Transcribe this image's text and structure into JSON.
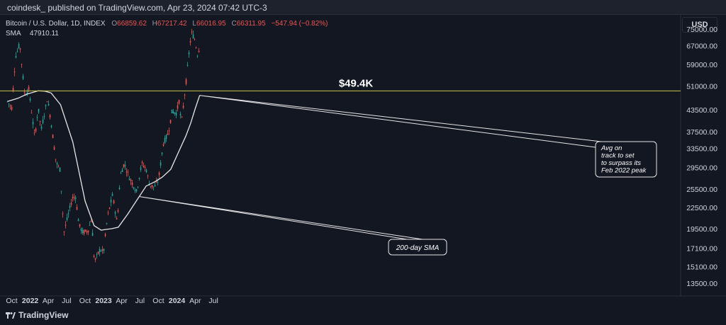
{
  "header": {
    "published": "coindesk_ published on TradingView.com, Apr 23, 2024 07:42 UTC-3"
  },
  "legend": {
    "symbol": "Bitcoin / U.S. Dollar, 1D, INDEX",
    "o_label": "O",
    "o_value": "66859.62",
    "h_label": "H",
    "h_value": "67217.42",
    "l_label": "L",
    "l_value": "66016.95",
    "c_label": "C",
    "c_value": "66311.95",
    "change": "−547.94 (−0.82%)",
    "sma_label": "SMA",
    "sma_value": "47910.11"
  },
  "currency_button": "USD",
  "footer": {
    "brand": "TradingView"
  },
  "colors": {
    "background": "#131722",
    "up_candle": "#26a69a",
    "down_candle": "#ef5350",
    "sma_line": "#e6e6e6",
    "level_line": "#c7c84a"
  },
  "chart_data": {
    "type": "line",
    "ylim": [
      13500,
      79000
    ],
    "price_ticks": [
      "75000.00",
      "67000.00",
      "59000.00",
      "51000.00",
      "43500.00",
      "37500.00",
      "33500.00",
      "29500.00",
      "25500.00",
      "22500.00",
      "19500.00",
      "17100.00",
      "15100.00",
      "13500.00"
    ],
    "x_ticks": [
      "Oct",
      "2022",
      "Apr",
      "Jul",
      "Oct",
      "2023",
      "Apr",
      "Jul",
      "Oct",
      "2024",
      "Apr",
      "Jul"
    ],
    "series": [
      {
        "key": "price",
        "x": [
          "2021-09-10",
          "2021-10-01",
          "2021-10-20",
          "2021-11-10",
          "2021-12-05",
          "2021-12-25",
          "2022-01-24",
          "2022-02-10",
          "2022-02-25",
          "2022-03-28",
          "2022-04-15",
          "2022-05-10",
          "2022-05-30",
          "2022-06-18",
          "2022-07-10",
          "2022-07-30",
          "2022-08-15",
          "2022-09-01",
          "2022-09-20",
          "2022-10-15",
          "2022-11-05",
          "2022-11-10",
          "2022-11-21",
          "2022-12-15",
          "2023-01-01",
          "2023-01-20",
          "2023-02-15",
          "2023-03-10",
          "2023-03-25",
          "2023-04-14",
          "2023-05-10",
          "2023-06-15",
          "2023-07-10",
          "2023-08-01",
          "2023-08-18",
          "2023-09-10",
          "2023-10-01",
          "2023-10-25",
          "2023-11-20",
          "2023-12-08",
          "2023-12-31",
          "2024-01-11",
          "2024-01-23",
          "2024-02-15",
          "2024-03-05",
          "2024-03-14",
          "2024-03-28",
          "2024-04-13",
          "2024-04-23"
        ],
        "y": [
          46000,
          44000,
          62000,
          68000,
          48000,
          50000,
          36000,
          44000,
          38000,
          47000,
          40000,
          30500,
          29000,
          19000,
          21500,
          24000,
          24200,
          20000,
          19000,
          19200,
          21000,
          16500,
          15800,
          17000,
          16600,
          21000,
          24500,
          20200,
          27800,
          30300,
          27500,
          25000,
          30300,
          29200,
          26200,
          25800,
          27000,
          34500,
          37300,
          43000,
          42500,
          46500,
          39500,
          52000,
          67000,
          73000,
          70500,
          63000,
          66300
        ]
      },
      {
        "key": "sma_200",
        "x": [
          "2021-09-10",
          "2021-11-01",
          "2021-12-15",
          "2022-02-10",
          "2022-03-15",
          "2022-04-15",
          "2022-06-01",
          "2022-08-01",
          "2022-10-01",
          "2022-11-15",
          "2022-12-20",
          "2023-01-10",
          "2023-02-10",
          "2023-03-15",
          "2023-05-01",
          "2023-06-15",
          "2023-08-01",
          "2023-09-15",
          "2023-10-20",
          "2023-12-01",
          "2024-01-10",
          "2024-02-15",
          "2024-03-10",
          "2024-04-01",
          "2024-04-23"
        ],
        "y": [
          46000,
          47000,
          48300,
          49400,
          49300,
          48700,
          45000,
          35000,
          23500,
          19900,
          19300,
          19400,
          19500,
          19700,
          21500,
          23600,
          26000,
          26800,
          27600,
          29100,
          32800,
          36500,
          39800,
          43800,
          47900
        ]
      }
    ]
  },
  "annotations": {
    "level_label": "$49.4K",
    "level_value": 49400,
    "sma_callout": "200-day SMA",
    "peak_callout_lines": [
      "Avg on",
      "track to set",
      "to surpass its",
      "Feb 2022 peak"
    ]
  }
}
